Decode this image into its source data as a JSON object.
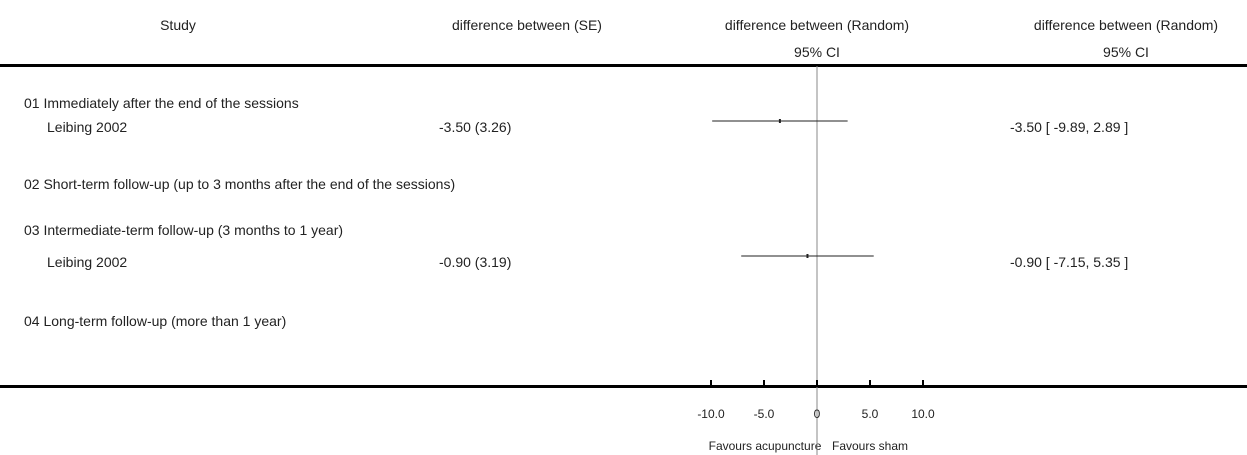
{
  "header": {
    "study": "Study",
    "col_se": "difference between (SE)",
    "col_plot_line1": "difference between (Random)",
    "col_plot_line2": "95% CI",
    "col_ci_line1": "difference between (Random)",
    "col_ci_line2": "95% CI"
  },
  "groups": [
    {
      "label": "01 Immediately after the end of the sessions"
    },
    {
      "label": "02 Short-term follow-up (up to 3 months after the end of the sessions)"
    },
    {
      "label": "03 Intermediate-term follow-up (3 months to 1 year)"
    },
    {
      "label": "04 Long-term follow-up (more than 1 year)"
    }
  ],
  "chart_data": {
    "type": "forest",
    "x_ticks": [
      "-10.0",
      "-5.0",
      "0",
      "5.0",
      "10.0"
    ],
    "x_tick_values": [
      -10,
      -5,
      0,
      5,
      10
    ],
    "xlim": [
      -10,
      10
    ],
    "left_label": "Favours acupuncture",
    "right_label": "Favours sham",
    "studies": [
      {
        "study": "Leibing 2002",
        "group": 0,
        "se_text": "-3.50 (3.26)",
        "estimate": -3.5,
        "ci_low": -9.89,
        "ci_high": 2.89,
        "ci_text": "-3.50 [ -9.89, 2.89 ]"
      },
      {
        "study": "Leibing 2002",
        "group": 2,
        "se_text": "-0.90 (3.19)",
        "estimate": -0.9,
        "ci_low": -7.15,
        "ci_high": 5.35,
        "ci_text": "-0.90 [ -7.15, 5.35 ]"
      }
    ]
  }
}
